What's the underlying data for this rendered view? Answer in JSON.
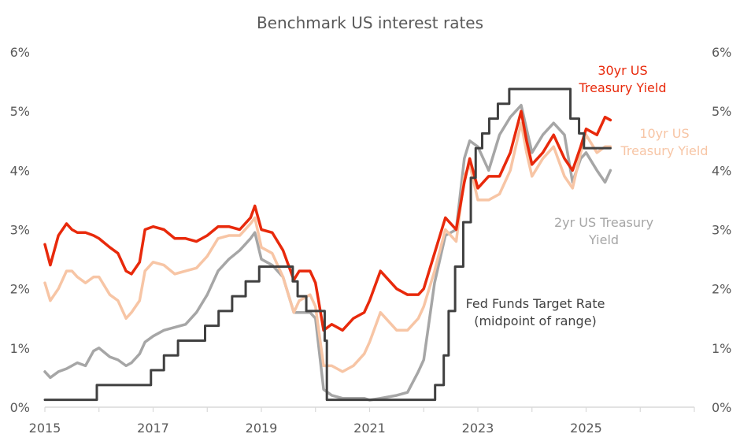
{
  "chart_data": {
    "type": "line",
    "title": "Benchmark US interest rates",
    "xlim": [
      2015,
      2027
    ],
    "ylim": [
      0,
      6
    ],
    "x_ticks": [
      "2015",
      "2017",
      "2019",
      "2021",
      "2023",
      "2025"
    ],
    "x_tick_values": [
      2015,
      2017,
      2019,
      2021,
      2023,
      2025
    ],
    "y_ticks_left": [
      "0%",
      "1%",
      "2%",
      "3%",
      "4%",
      "5%",
      "6%"
    ],
    "y_ticks_right": [
      "0%",
      "1%",
      "2%",
      "3%",
      "4%",
      "5%",
      "6%"
    ],
    "y_tick_values": [
      0,
      1,
      2,
      3,
      4,
      5,
      6
    ],
    "legend": "inline labels",
    "colors": {
      "t30": "#e8290b",
      "t10": "#f7c5a5",
      "t2": "#a6a6a6",
      "fed": "#404040",
      "axis": "#d9d9d9",
      "text": "#595959"
    },
    "series": [
      {
        "key": "t30",
        "name": "30yr US Treasury Yield",
        "label_lines": [
          "30yr US",
          "Treasury Yield"
        ],
        "x": [
          2015.0,
          2015.1,
          2015.25,
          2015.4,
          2015.5,
          2015.6,
          2015.75,
          2015.9,
          2016.0,
          2016.2,
          2016.35,
          2016.5,
          2016.6,
          2016.75,
          2016.85,
          2017.0,
          2017.2,
          2017.4,
          2017.6,
          2017.8,
          2018.0,
          2018.2,
          2018.4,
          2018.6,
          2018.8,
          2018.88,
          2019.0,
          2019.2,
          2019.4,
          2019.6,
          2019.7,
          2019.9,
          2020.0,
          2020.15,
          2020.3,
          2020.5,
          2020.7,
          2020.9,
          2021.0,
          2021.2,
          2021.5,
          2021.7,
          2021.9,
          2022.0,
          2022.2,
          2022.4,
          2022.6,
          2022.75,
          2022.85,
          2023.0,
          2023.2,
          2023.4,
          2023.6,
          2023.8,
          2023.9,
          2024.0,
          2024.2,
          2024.4,
          2024.6,
          2024.75,
          2024.9,
          2025.0,
          2025.2,
          2025.35,
          2025.45
        ],
        "y": [
          2.75,
          2.4,
          2.9,
          3.1,
          3.0,
          2.95,
          2.95,
          2.9,
          2.85,
          2.7,
          2.6,
          2.3,
          2.25,
          2.45,
          3.0,
          3.05,
          3.0,
          2.85,
          2.85,
          2.8,
          2.9,
          3.05,
          3.05,
          3.0,
          3.2,
          3.4,
          3.0,
          2.95,
          2.65,
          2.15,
          2.3,
          2.3,
          2.1,
          1.3,
          1.4,
          1.3,
          1.5,
          1.6,
          1.8,
          2.3,
          2.0,
          1.9,
          1.9,
          2.0,
          2.6,
          3.2,
          3.0,
          3.8,
          4.2,
          3.7,
          3.9,
          3.9,
          4.3,
          5.0,
          4.5,
          4.1,
          4.3,
          4.6,
          4.2,
          4.0,
          4.4,
          4.7,
          4.6,
          4.9,
          4.85
        ]
      },
      {
        "key": "t10",
        "name": "10yr US Treasury Yield",
        "label_lines": [
          "10yr US",
          "Treasury Yield"
        ],
        "x": [
          2015.0,
          2015.1,
          2015.25,
          2015.4,
          2015.5,
          2015.6,
          2015.75,
          2015.9,
          2016.0,
          2016.2,
          2016.35,
          2016.5,
          2016.6,
          2016.75,
          2016.85,
          2017.0,
          2017.2,
          2017.4,
          2017.6,
          2017.8,
          2018.0,
          2018.2,
          2018.4,
          2018.6,
          2018.8,
          2018.88,
          2019.0,
          2019.2,
          2019.4,
          2019.6,
          2019.7,
          2019.9,
          2020.0,
          2020.15,
          2020.3,
          2020.5,
          2020.7,
          2020.9,
          2021.0,
          2021.2,
          2021.5,
          2021.7,
          2021.9,
          2022.0,
          2022.2,
          2022.4,
          2022.6,
          2022.75,
          2022.85,
          2023.0,
          2023.2,
          2023.4,
          2023.6,
          2023.8,
          2023.9,
          2024.0,
          2024.2,
          2024.4,
          2024.6,
          2024.75,
          2024.9,
          2025.0,
          2025.2,
          2025.35,
          2025.45
        ],
        "y": [
          2.1,
          1.8,
          2.0,
          2.3,
          2.3,
          2.2,
          2.1,
          2.2,
          2.2,
          1.9,
          1.8,
          1.5,
          1.6,
          1.8,
          2.3,
          2.45,
          2.4,
          2.25,
          2.3,
          2.35,
          2.55,
          2.85,
          2.9,
          2.9,
          3.1,
          3.2,
          2.7,
          2.6,
          2.2,
          1.6,
          1.8,
          1.9,
          1.7,
          0.7,
          0.7,
          0.6,
          0.7,
          0.9,
          1.1,
          1.6,
          1.3,
          1.3,
          1.5,
          1.7,
          2.3,
          3.0,
          2.8,
          3.9,
          4.1,
          3.5,
          3.5,
          3.6,
          4.0,
          4.8,
          4.3,
          3.9,
          4.2,
          4.4,
          3.9,
          3.7,
          4.3,
          4.6,
          4.3,
          4.4,
          4.4
        ]
      },
      {
        "key": "t2",
        "name": "2yr US Treasury Yield",
        "label_lines": [
          "2yr US Treasury",
          "Yield"
        ],
        "x": [
          2015.0,
          2015.1,
          2015.25,
          2015.4,
          2015.5,
          2015.6,
          2015.75,
          2015.9,
          2016.0,
          2016.2,
          2016.35,
          2016.5,
          2016.6,
          2016.75,
          2016.85,
          2017.0,
          2017.2,
          2017.4,
          2017.6,
          2017.8,
          2018.0,
          2018.2,
          2018.4,
          2018.6,
          2018.8,
          2018.88,
          2019.0,
          2019.2,
          2019.4,
          2019.6,
          2019.7,
          2019.9,
          2020.0,
          2020.15,
          2020.3,
          2020.5,
          2020.7,
          2020.9,
          2021.0,
          2021.2,
          2021.5,
          2021.7,
          2021.9,
          2022.0,
          2022.2,
          2022.4,
          2022.6,
          2022.75,
          2022.85,
          2023.0,
          2023.2,
          2023.4,
          2023.6,
          2023.8,
          2023.9,
          2024.0,
          2024.2,
          2024.4,
          2024.6,
          2024.75,
          2024.9,
          2025.0,
          2025.2,
          2025.35,
          2025.45
        ],
        "y": [
          0.6,
          0.5,
          0.6,
          0.65,
          0.7,
          0.75,
          0.7,
          0.95,
          1.0,
          0.85,
          0.8,
          0.7,
          0.75,
          0.9,
          1.1,
          1.2,
          1.3,
          1.35,
          1.4,
          1.6,
          1.9,
          2.3,
          2.5,
          2.65,
          2.85,
          2.95,
          2.5,
          2.4,
          2.2,
          1.6,
          1.6,
          1.6,
          1.5,
          0.3,
          0.2,
          0.15,
          0.15,
          0.15,
          0.12,
          0.15,
          0.2,
          0.25,
          0.6,
          0.8,
          2.1,
          2.9,
          3.0,
          4.2,
          4.5,
          4.4,
          4.0,
          4.6,
          4.9,
          5.1,
          4.7,
          4.3,
          4.6,
          4.8,
          4.6,
          3.8,
          4.2,
          4.3,
          4.0,
          3.8,
          4.0
        ]
      },
      {
        "key": "fed",
        "name": "Fed Funds Target Rate (midpoint of range)",
        "label_lines": [
          "Fed Funds Target Rate",
          "(midpoint of range)"
        ],
        "step": true,
        "x": [
          2015.0,
          2015.96,
          2016.96,
          2017.2,
          2017.46,
          2017.96,
          2018.21,
          2018.46,
          2018.71,
          2018.96,
          2019.58,
          2019.67,
          2019.83,
          2020.17,
          2020.21,
          2022.21,
          2022.37,
          2022.46,
          2022.58,
          2022.73,
          2022.87,
          2022.96,
          2023.08,
          2023.21,
          2023.37,
          2023.58,
          2024.71,
          2024.87,
          2024.96,
          2025.45
        ],
        "y": [
          0.125,
          0.375,
          0.625,
          0.875,
          1.125,
          1.375,
          1.625,
          1.875,
          2.125,
          2.375,
          2.125,
          1.875,
          1.625,
          1.125,
          0.125,
          0.375,
          0.875,
          1.625,
          2.375,
          3.125,
          3.875,
          4.375,
          4.625,
          4.875,
          5.125,
          5.375,
          4.875,
          4.625,
          4.375,
          4.375
        ]
      }
    ]
  }
}
